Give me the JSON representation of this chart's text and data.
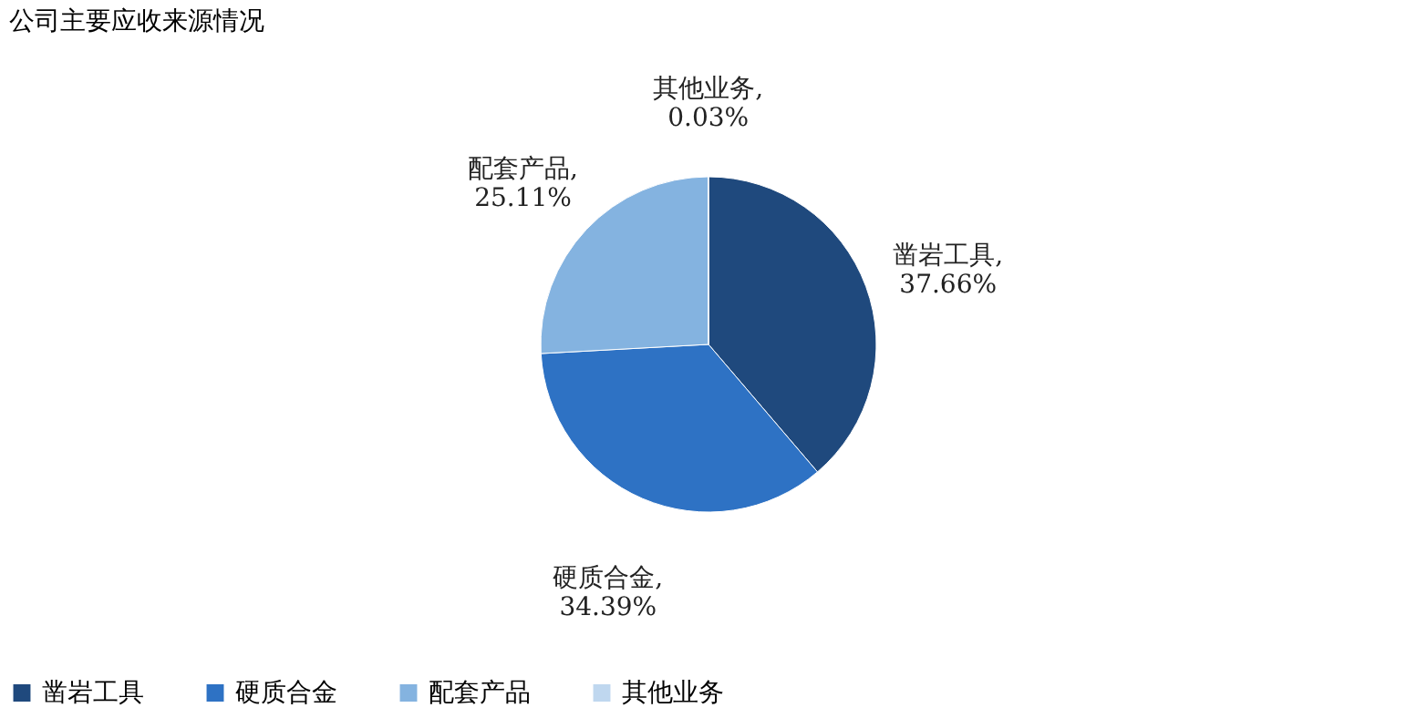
{
  "chart_data": {
    "type": "pie",
    "title": "公司主要应收来源情况",
    "categories": [
      "凿岩工具",
      "硬质合金",
      "配套产品",
      "其他业务"
    ],
    "values": [
      37.66,
      34.39,
      25.11,
      0.03
    ],
    "colors": [
      "#1f497d",
      "#2e72c4",
      "#84b3e0",
      "#bfd7ef"
    ],
    "value_labels": [
      "凿岩工具,\n37.66%",
      "硬质合金,\n34.39%",
      "配套产品,\n25.11%",
      "其他业务,\n0.03%"
    ],
    "legend": "bottom"
  }
}
